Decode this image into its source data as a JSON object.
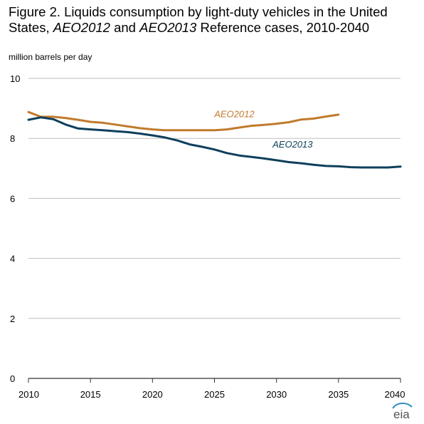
{
  "title": {
    "part1": "Figure 2. Liquids consumption by light-duty vehicles in the United States, ",
    "em1": "AEO2012",
    "part2": " and ",
    "em2": "AEO2013",
    "part3": " Reference cases, 2010-2040"
  },
  "logo_text": "eia",
  "chart_data": {
    "type": "line",
    "ylabel": "million barrels per day",
    "xlim": [
      2010,
      2040
    ],
    "ylim": [
      0,
      10
    ],
    "x_ticks": [
      2010,
      2015,
      2020,
      2025,
      2030,
      2035,
      2040
    ],
    "y_ticks": [
      0,
      2,
      4,
      6,
      8,
      10
    ],
    "grid": "horizontal",
    "series": [
      {
        "name": "AEO2012",
        "color": "#c07a2c",
        "x": [
          2010,
          2011,
          2012,
          2013,
          2014,
          2015,
          2016,
          2017,
          2018,
          2019,
          2020,
          2021,
          2022,
          2023,
          2024,
          2025,
          2026,
          2027,
          2028,
          2029,
          2030,
          2031,
          2032,
          2033,
          2034,
          2035
        ],
        "values": [
          8.88,
          8.72,
          8.72,
          8.68,
          8.62,
          8.55,
          8.52,
          8.46,
          8.4,
          8.34,
          8.3,
          8.27,
          8.27,
          8.27,
          8.27,
          8.27,
          8.3,
          8.36,
          8.42,
          8.45,
          8.49,
          8.54,
          8.63,
          8.66,
          8.73,
          8.79
        ]
      },
      {
        "name": "AEO2013",
        "color": "#0e3f5c",
        "x": [
          2010,
          2011,
          2012,
          2013,
          2014,
          2015,
          2016,
          2017,
          2018,
          2019,
          2020,
          2021,
          2022,
          2023,
          2024,
          2025,
          2026,
          2027,
          2028,
          2029,
          2030,
          2031,
          2032,
          2033,
          2034,
          2035,
          2036,
          2037,
          2038,
          2039,
          2040
        ],
        "values": [
          8.62,
          8.7,
          8.64,
          8.46,
          8.33,
          8.3,
          8.27,
          8.24,
          8.21,
          8.16,
          8.1,
          8.03,
          7.93,
          7.8,
          7.72,
          7.63,
          7.51,
          7.43,
          7.38,
          7.33,
          7.27,
          7.21,
          7.17,
          7.12,
          7.08,
          7.07,
          7.04,
          7.03,
          7.03,
          7.03,
          7.06
        ]
      }
    ]
  }
}
